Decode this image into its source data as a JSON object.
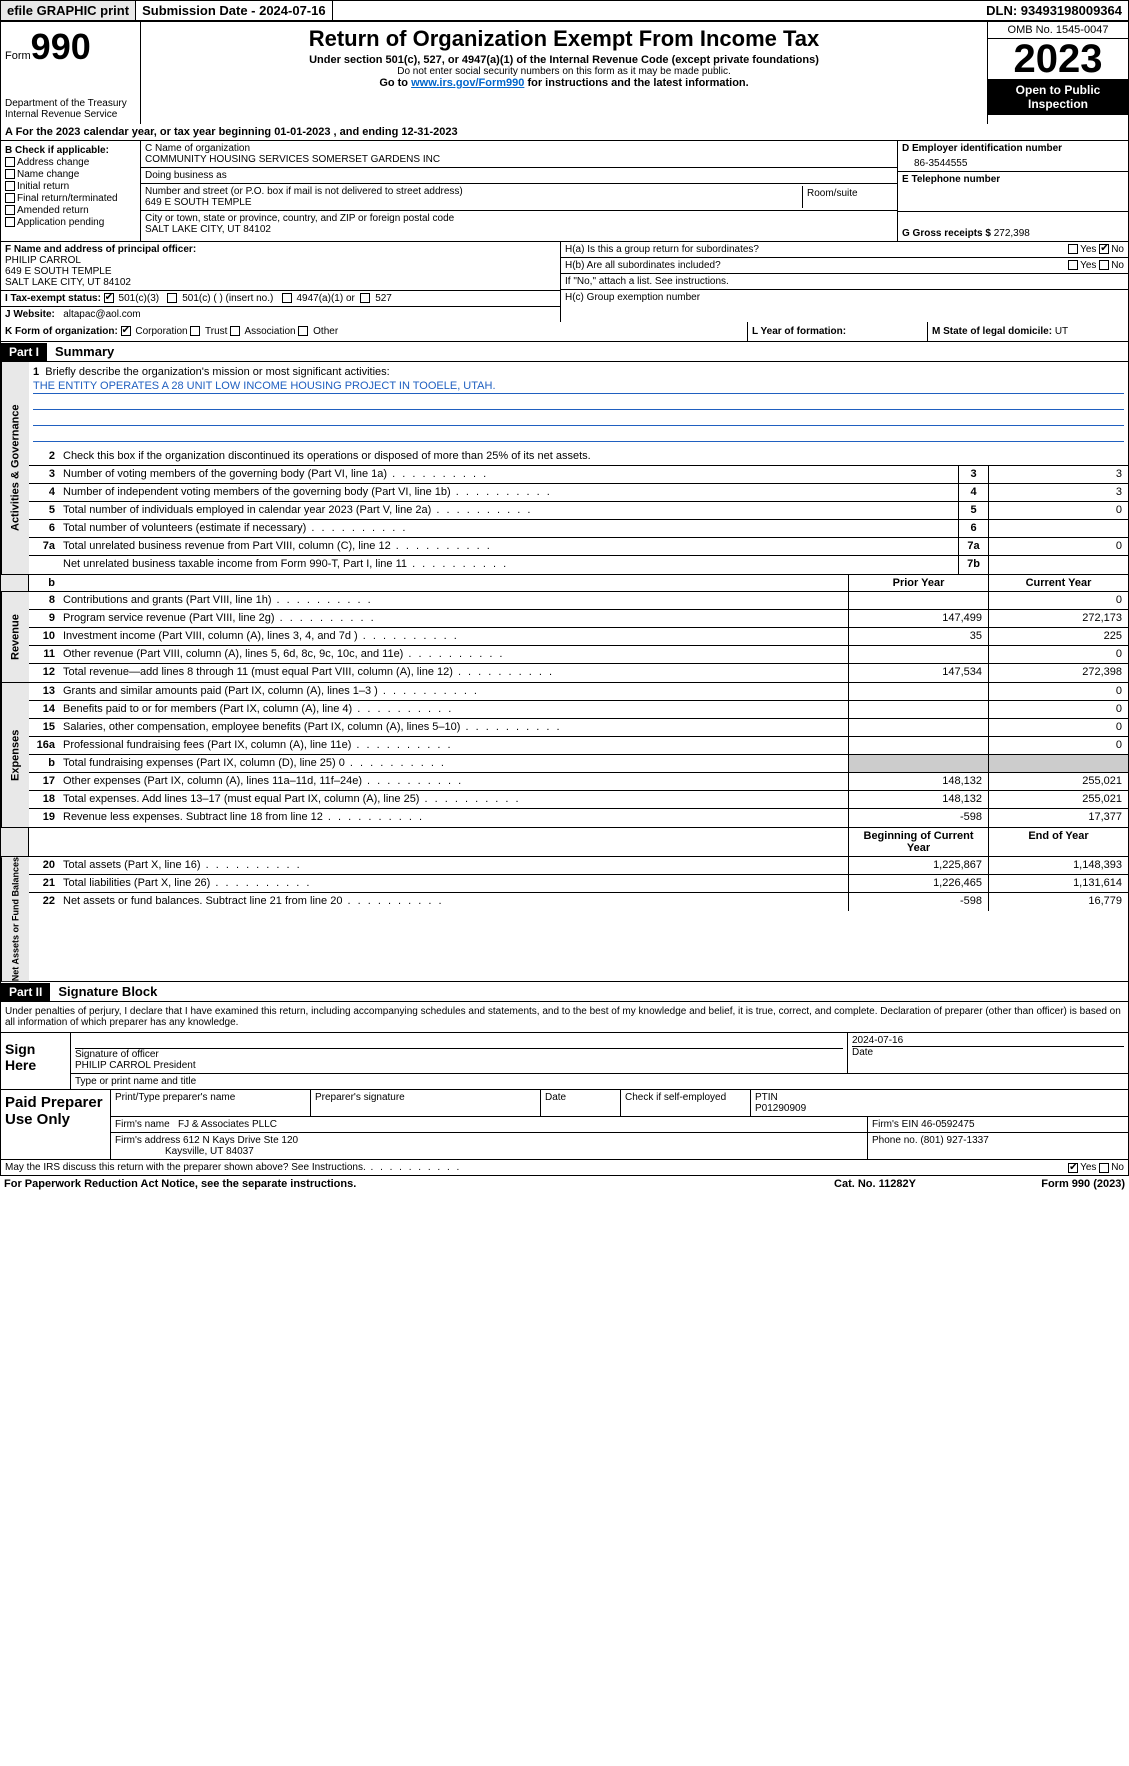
{
  "topbar": {
    "efile": "efile GRAPHIC print",
    "submission": "Submission Date - 2024-07-16",
    "dln": "DLN: 93493198009364"
  },
  "header": {
    "form_label": "Form",
    "form_num": "990",
    "dept": "Department of the Treasury Internal Revenue Service",
    "title": "Return of Organization Exempt From Income Tax",
    "sub1": "Under section 501(c), 527, or 4947(a)(1) of the Internal Revenue Code (except private foundations)",
    "sub2": "Do not enter social security numbers on this form as it may be made public.",
    "sub3_pre": "Go to ",
    "sub3_link": "www.irs.gov/Form990",
    "sub3_post": " for instructions and the latest information.",
    "omb": "OMB No. 1545-0047",
    "year": "2023",
    "open_pub": "Open to Public Inspection"
  },
  "line_a": "A For the 2023 calendar year, or tax year beginning 01-01-2023   , and ending 12-31-2023",
  "section_b": {
    "label": "B Check if applicable:",
    "items": [
      "Address change",
      "Name change",
      "Initial return",
      "Final return/terminated",
      "Amended return",
      "Application pending"
    ]
  },
  "section_c": {
    "name_label": "C Name of organization",
    "name": "COMMUNITY HOUSING SERVICES SOMERSET GARDENS INC",
    "dba_label": "Doing business as",
    "addr_label": "Number and street (or P.O. box if mail is not delivered to street address)",
    "addr": "649 E SOUTH TEMPLE",
    "room_label": "Room/suite",
    "city_label": "City or town, state or province, country, and ZIP or foreign postal code",
    "city": "SALT LAKE CITY, UT  84102"
  },
  "section_d": {
    "ein_label": "D Employer identification number",
    "ein": "86-3544555",
    "tel_label": "E Telephone number",
    "receipts_label": "G Gross receipts $ ",
    "receipts": "272,398"
  },
  "section_f": {
    "label": "F  Name and address of principal officer:",
    "name": "PHILIP CARROL",
    "addr1": "649 E SOUTH TEMPLE",
    "addr2": "SALT LAKE CITY, UT  84102"
  },
  "section_i": {
    "label": "I   Tax-exempt status:",
    "opt1": "501(c)(3)",
    "opt2": "501(c) (  ) (insert no.)",
    "opt3": "4947(a)(1) or",
    "opt4": "527"
  },
  "section_j": {
    "label": "J   Website:",
    "value": "altapac@aol.com"
  },
  "section_h": {
    "ha": "H(a)  Is this a group return for subordinates?",
    "hb": "H(b)  Are all subordinates included?",
    "hb_note": "If \"No,\" attach a list. See instructions.",
    "hc": "H(c)  Group exemption number"
  },
  "yes": "Yes",
  "no": "No",
  "section_k": {
    "label": "K Form of organization:",
    "corp": "Corporation",
    "trust": "Trust",
    "assoc": "Association",
    "other": "Other",
    "l_label": "L Year of formation:",
    "m_label": "M State of legal domicile: ",
    "m_val": "UT"
  },
  "part1": {
    "hdr": "Part I",
    "title": "Summary",
    "l1": "Briefly describe the organization's mission or most significant activities:",
    "mission": "THE ENTITY OPERATES A 28 UNIT LOW INCOME HOUSING PROJECT IN TOOELE, UTAH.",
    "l2": "Check this box      if the organization discontinued its operations or disposed of more than 25% of its net assets.",
    "tabs": {
      "gov": "Activities & Governance",
      "rev": "Revenue",
      "exp": "Expenses",
      "net": "Net Assets or Fund Balances"
    },
    "rows_gov": [
      {
        "n": "3",
        "label": "Number of voting members of the governing body (Part VI, line 1a)",
        "box": "3",
        "val": "3"
      },
      {
        "n": "4",
        "label": "Number of independent voting members of the governing body (Part VI, line 1b)",
        "box": "4",
        "val": "3"
      },
      {
        "n": "5",
        "label": "Total number of individuals employed in calendar year 2023 (Part V, line 2a)",
        "box": "5",
        "val": "0"
      },
      {
        "n": "6",
        "label": "Total number of volunteers (estimate if necessary)",
        "box": "6",
        "val": ""
      },
      {
        "n": "7a",
        "label": "Total unrelated business revenue from Part VIII, column (C), line 12",
        "box": "7a",
        "val": "0"
      },
      {
        "n": "",
        "label": "Net unrelated business taxable income from Form 990-T, Part I, line 11",
        "box": "7b",
        "val": ""
      }
    ],
    "col_prior": "Prior Year",
    "col_curr": "Current Year",
    "col_beg": "Beginning of Current Year",
    "col_end": "End of Year",
    "rows_rev": [
      {
        "n": "8",
        "label": "Contributions and grants (Part VIII, line 1h)",
        "p": "",
        "c": "0"
      },
      {
        "n": "9",
        "label": "Program service revenue (Part VIII, line 2g)",
        "p": "147,499",
        "c": "272,173"
      },
      {
        "n": "10",
        "label": "Investment income (Part VIII, column (A), lines 3, 4, and 7d )",
        "p": "35",
        "c": "225"
      },
      {
        "n": "11",
        "label": "Other revenue (Part VIII, column (A), lines 5, 6d, 8c, 9c, 10c, and 11e)",
        "p": "",
        "c": "0"
      },
      {
        "n": "12",
        "label": "Total revenue—add lines 8 through 11 (must equal Part VIII, column (A), line 12)",
        "p": "147,534",
        "c": "272,398"
      }
    ],
    "rows_exp": [
      {
        "n": "13",
        "label": "Grants and similar amounts paid (Part IX, column (A), lines 1–3 )",
        "p": "",
        "c": "0"
      },
      {
        "n": "14",
        "label": "Benefits paid to or for members (Part IX, column (A), line 4)",
        "p": "",
        "c": "0"
      },
      {
        "n": "15",
        "label": "Salaries, other compensation, employee benefits (Part IX, column (A), lines 5–10)",
        "p": "",
        "c": "0"
      },
      {
        "n": "16a",
        "label": "Professional fundraising fees (Part IX, column (A), line 11e)",
        "p": "",
        "c": "0"
      },
      {
        "n": "b",
        "label": "Total fundraising expenses (Part IX, column (D), line 25) 0",
        "p": "shade",
        "c": "shade"
      },
      {
        "n": "17",
        "label": "Other expenses (Part IX, column (A), lines 11a–11d, 11f–24e)",
        "p": "148,132",
        "c": "255,021"
      },
      {
        "n": "18",
        "label": "Total expenses. Add lines 13–17 (must equal Part IX, column (A), line 25)",
        "p": "148,132",
        "c": "255,021"
      },
      {
        "n": "19",
        "label": "Revenue less expenses. Subtract line 18 from line 12",
        "p": "-598",
        "c": "17,377"
      }
    ],
    "rows_net": [
      {
        "n": "20",
        "label": "Total assets (Part X, line 16)",
        "p": "1,225,867",
        "c": "1,148,393"
      },
      {
        "n": "21",
        "label": "Total liabilities (Part X, line 26)",
        "p": "1,226,465",
        "c": "1,131,614"
      },
      {
        "n": "22",
        "label": "Net assets or fund balances. Subtract line 21 from line 20",
        "p": "-598",
        "c": "16,779"
      }
    ]
  },
  "part2": {
    "hdr": "Part II",
    "title": "Signature Block",
    "penal": "Under penalties of perjury, I declare that I have examined this return, including accompanying schedules and statements, and to the best of my knowledge and belief, it is true, correct, and complete. Declaration of preparer (other than officer) is based on all information of which preparer has any knowledge.",
    "sign_here": "Sign Here",
    "sig_officer": "Signature of officer",
    "officer": "PHILIP CARROL President",
    "type_name": "Type or print name and title",
    "date_label": "Date",
    "date": "2024-07-16",
    "paid": "Paid Preparer Use Only",
    "prep_name_label": "Print/Type preparer's name",
    "prep_sig_label": "Preparer's signature",
    "check_self": "Check      if self-employed",
    "ptin_label": "PTIN",
    "ptin": "P01290909",
    "firm_name_label": "Firm's name",
    "firm_name": "FJ & Associates PLLC",
    "firm_ein_label": "Firm's EIN",
    "firm_ein": "46-0592475",
    "firm_addr_label": "Firm's address",
    "firm_addr1": "612 N Kays Drive Ste 120",
    "firm_addr2": "Kaysville, UT  84037",
    "phone_label": "Phone no.",
    "phone": "(801) 927-1337",
    "discuss": "May the IRS discuss this return with the preparer shown above? See Instructions."
  },
  "footer": {
    "paperwork": "For Paperwork Reduction Act Notice, see the separate instructions.",
    "cat": "Cat. No. 11282Y",
    "form": "Form 990 (2023)"
  }
}
